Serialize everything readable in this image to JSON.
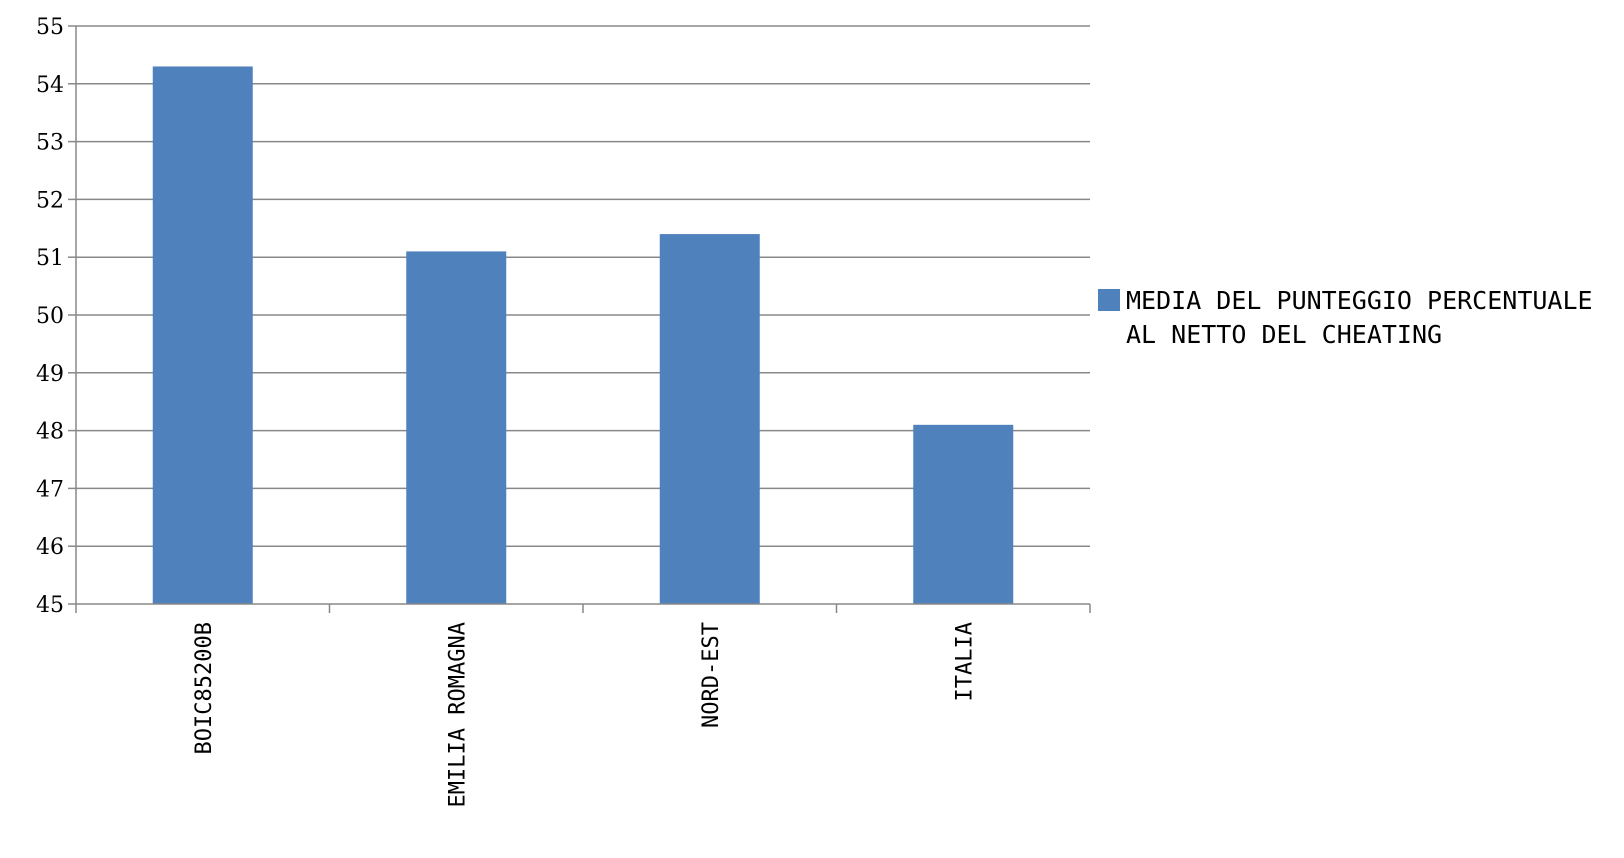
{
  "chart_data": {
    "type": "bar",
    "categories": [
      "BOIC85200B",
      "EMILIA ROMAGNA",
      "NORD-EST",
      "ITALIA"
    ],
    "series": [
      {
        "name": "MEDIA DEL PUNTEGGIO PERCENTUALE  AL NETTO DEL CHEATING",
        "values": [
          54.3,
          51.1,
          51.4,
          48.1
        ],
        "color": "#4f81bd"
      }
    ],
    "ylim": [
      45,
      55
    ],
    "yticks": [
      "45",
      "46",
      "47",
      "48",
      "49",
      "50",
      "51",
      "52",
      "53",
      "54",
      "55"
    ],
    "grid": true,
    "legend_position": "right"
  }
}
